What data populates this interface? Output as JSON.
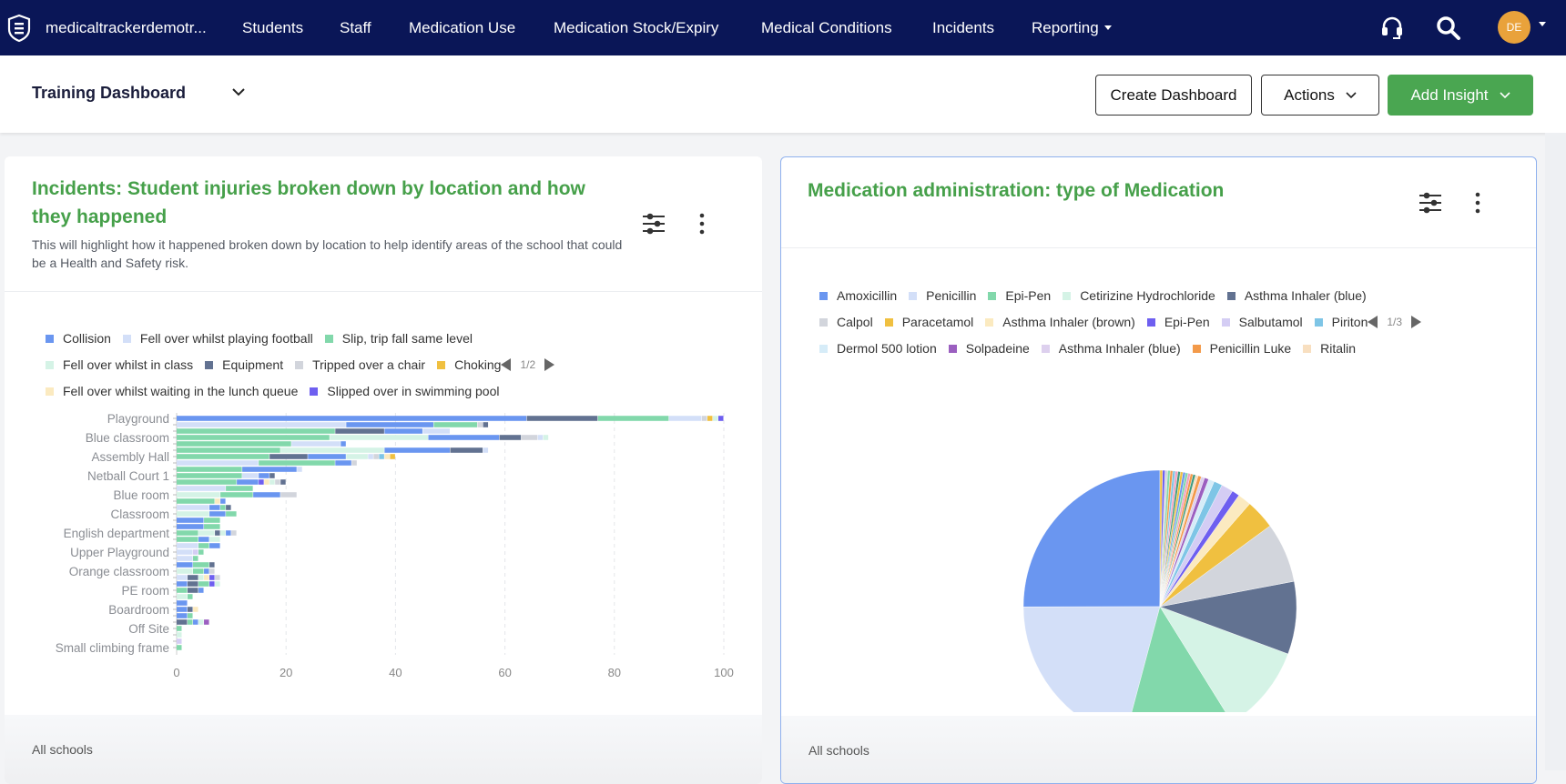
{
  "nav": {
    "brand": "medicaltrackerdemotr...",
    "items": [
      "Students",
      "Staff",
      "Medication Use",
      "Medication Stock/Expiry",
      "Medical Conditions",
      "Incidents",
      "Reporting"
    ],
    "avatar_initials": "DE",
    "bg_color": "#0a1657"
  },
  "header": {
    "dashboard_title": "Training Dashboard",
    "create_dashboard": "Create Dashboard",
    "actions": "Actions",
    "add_insight": "Add Insight",
    "accent_color": "#4aa651"
  },
  "cards": [
    {
      "title": "Incidents: Student injuries broken down by location and how they happened",
      "description": "This will highlight how it happened broken down by location to help identify areas of the school that could be a Health and Safety risk.",
      "footer": "All schools",
      "legend_page": "1/2"
    },
    {
      "title": "Medication administration: type of Medication",
      "footer": "All schools",
      "legend_page": "1/3"
    }
  ],
  "chart_data": [
    {
      "type": "bar",
      "orientation": "horizontal",
      "stacked": true,
      "xlim": [
        0,
        100
      ],
      "x_ticks": [
        "0",
        "20",
        "40",
        "60",
        "80",
        "100"
      ],
      "grid": "vertical dashed",
      "legend_placement": "top",
      "series": [
        {
          "name": "Collision",
          "color": "#6a96f0"
        },
        {
          "name": "Fell over whilst playing football",
          "color": "#d3dff8"
        },
        {
          "name": "Slip, trip fall same level",
          "color": "#82d8ab"
        },
        {
          "name": "Fell over whilst in class",
          "color": "#d5f3e6"
        },
        {
          "name": "Equipment",
          "color": "#627291"
        },
        {
          "name": "Tripped over a chair",
          "color": "#d2d5dc"
        },
        {
          "name": "Choking",
          "color": "#f0c040"
        },
        {
          "name": "Fell over whilst waiting in the lunch queue",
          "color": "#fbeac0"
        },
        {
          "name": "Slipped over in swimming pool",
          "color": "#6e5ff0"
        },
        {
          "color": "#7ec5e6"
        },
        {
          "color": "#d4cdf4"
        },
        {
          "color": "#9b5fc0"
        }
      ],
      "rows": [
        {
          "label": "Playground",
          "segments": [
            [
              0,
              64
            ],
            [
              4,
              13
            ],
            [
              2,
              13
            ],
            [
              1,
              6
            ],
            [
              5,
              1
            ],
            [
              6,
              1
            ],
            [
              3,
              1
            ],
            [
              8,
              1
            ]
          ]
        },
        {
          "label": "",
          "segments": [
            [
              1,
              31
            ],
            [
              0,
              16
            ],
            [
              2,
              8
            ],
            [
              5,
              1
            ],
            [
              4,
              1
            ]
          ]
        },
        {
          "label": "",
          "segments": [
            [
              2,
              29
            ],
            [
              4,
              9
            ],
            [
              0,
              7
            ],
            [
              1,
              5
            ]
          ]
        },
        {
          "label": "Blue classroom",
          "segments": [
            [
              2,
              28
            ],
            [
              3,
              18
            ],
            [
              0,
              13
            ],
            [
              4,
              4
            ],
            [
              5,
              3
            ],
            [
              1,
              1
            ],
            [
              3,
              1
            ]
          ]
        },
        {
          "label": "",
          "segments": [
            [
              2,
              21
            ],
            [
              1,
              9
            ],
            [
              0,
              1
            ]
          ]
        },
        {
          "label": "",
          "segments": [
            [
              2,
              19
            ],
            [
              3,
              19
            ],
            [
              0,
              12
            ],
            [
              4,
              6
            ],
            [
              1,
              1
            ]
          ]
        },
        {
          "label": "Assembly Hall",
          "segments": [
            [
              2,
              17
            ],
            [
              4,
              7
            ],
            [
              0,
              7
            ],
            [
              3,
              4
            ],
            [
              1,
              1
            ],
            [
              5,
              1
            ],
            [
              9,
              1
            ],
            [
              7,
              1
            ],
            [
              6,
              1
            ]
          ]
        },
        {
          "label": "",
          "segments": [
            [
              1,
              15
            ],
            [
              2,
              14
            ],
            [
              0,
              3
            ],
            [
              5,
              1
            ]
          ]
        },
        {
          "label": "",
          "segments": [
            [
              2,
              12
            ],
            [
              0,
              10
            ],
            [
              1,
              1
            ]
          ]
        },
        {
          "label": "Netball Court 1",
          "segments": [
            [
              2,
              12
            ],
            [
              1,
              3
            ],
            [
              0,
              2
            ],
            [
              4,
              1
            ]
          ]
        },
        {
          "label": "",
          "segments": [
            [
              2,
              11
            ],
            [
              0,
              4
            ],
            [
              8,
              1
            ],
            [
              7,
              1
            ],
            [
              3,
              1
            ],
            [
              5,
              1
            ],
            [
              4,
              1
            ]
          ]
        },
        {
          "label": "",
          "segments": [
            [
              1,
              9
            ],
            [
              2,
              5
            ]
          ]
        },
        {
          "label": "Blue room",
          "segments": [
            [
              3,
              8
            ],
            [
              2,
              6
            ],
            [
              0,
              5
            ],
            [
              5,
              3
            ]
          ]
        },
        {
          "label": "",
          "segments": [
            [
              2,
              7
            ],
            [
              7,
              1
            ],
            [
              0,
              1
            ]
          ]
        },
        {
          "label": "",
          "segments": [
            [
              1,
              6
            ],
            [
              0,
              2
            ],
            [
              2,
              1
            ],
            [
              4,
              1
            ]
          ]
        },
        {
          "label": "Classroom",
          "segments": [
            [
              3,
              6
            ],
            [
              0,
              3
            ],
            [
              2,
              2
            ]
          ]
        },
        {
          "label": "",
          "segments": [
            [
              0,
              5
            ],
            [
              2,
              3
            ]
          ]
        },
        {
          "label": "",
          "segments": [
            [
              0,
              5
            ],
            [
              2,
              3
            ]
          ]
        },
        {
          "label": "English department",
          "segments": [
            [
              2,
              4
            ],
            [
              3,
              3
            ],
            [
              4,
              1
            ],
            [
              3,
              1
            ],
            [
              0,
              1
            ],
            [
              5,
              1
            ]
          ]
        },
        {
          "label": "",
          "segments": [
            [
              2,
              4
            ],
            [
              0,
              2
            ],
            [
              3,
              2
            ]
          ]
        },
        {
          "label": "",
          "segments": [
            [
              1,
              4
            ],
            [
              2,
              2
            ],
            [
              0,
              2
            ]
          ]
        },
        {
          "label": "Upper Playground",
          "segments": [
            [
              1,
              3
            ],
            [
              10,
              1
            ],
            [
              2,
              1
            ]
          ]
        },
        {
          "label": "",
          "segments": [
            [
              1,
              3
            ],
            [
              2,
              1
            ]
          ]
        },
        {
          "label": "",
          "segments": [
            [
              0,
              3
            ],
            [
              2,
              3
            ],
            [
              4,
              1
            ]
          ]
        },
        {
          "label": "Orange classroom",
          "segments": [
            [
              3,
              3
            ],
            [
              2,
              2
            ],
            [
              0,
              1
            ],
            [
              5,
              1
            ]
          ]
        },
        {
          "label": "",
          "segments": [
            [
              1,
              2
            ],
            [
              4,
              2
            ],
            [
              3,
              1
            ],
            [
              7,
              1
            ],
            [
              8,
              1
            ],
            [
              5,
              1
            ]
          ]
        },
        {
          "label": "",
          "segments": [
            [
              0,
              2
            ],
            [
              4,
              2
            ],
            [
              2,
              2
            ],
            [
              8,
              1
            ],
            [
              3,
              1
            ]
          ]
        },
        {
          "label": "PE room",
          "segments": [
            [
              2,
              2
            ],
            [
              4,
              2
            ],
            [
              0,
              1
            ]
          ]
        },
        {
          "label": "",
          "segments": [
            [
              3,
              2
            ],
            [
              2,
              1
            ]
          ]
        },
        {
          "label": "",
          "segments": [
            [
              0,
              2
            ]
          ]
        },
        {
          "label": "Boardroom",
          "segments": [
            [
              0,
              2
            ],
            [
              4,
              1
            ],
            [
              7,
              1
            ]
          ]
        },
        {
          "label": "",
          "segments": [
            [
              0,
              2
            ],
            [
              2,
              1
            ]
          ]
        },
        {
          "label": "",
          "segments": [
            [
              4,
              2
            ],
            [
              2,
              1
            ],
            [
              0,
              1
            ],
            [
              3,
              1
            ],
            [
              11,
              1
            ]
          ]
        },
        {
          "label": "Off Site",
          "segments": [
            [
              2,
              1
            ]
          ]
        },
        {
          "label": "",
          "segments": [
            [
              3,
              1
            ]
          ]
        },
        {
          "label": "",
          "segments": [
            [
              10,
              1
            ]
          ]
        },
        {
          "label": "Small climbing frame",
          "segments": [
            [
              2,
              1
            ]
          ]
        }
      ]
    },
    {
      "type": "pie",
      "unit": "percent",
      "legend_placement": "top",
      "slices": [
        {
          "name": "Amoxicillin",
          "value": 25.0,
          "color": "#6a96f0"
        },
        {
          "name": "Penicillin",
          "value": 20.8,
          "color": "#d3dff8"
        },
        {
          "name": "Epi-Pen",
          "value": 13.0,
          "color": "#82d8ab"
        },
        {
          "name": "Cetirizine Hydrochloride",
          "value": 10.5,
          "color": "#d5f3e6"
        },
        {
          "name": "Asthma Inhaler (blue)",
          "value": 8.6,
          "color": "#627291"
        },
        {
          "name": "Calpol",
          "value": 7.1,
          "color": "#d2d5dc"
        },
        {
          "name": "Paracetamol",
          "value": 3.5,
          "color": "#f0c040"
        },
        {
          "name": "Asthma Inhaler (brown)",
          "value": 1.6,
          "color": "#fbeac0"
        },
        {
          "name": "Epi-Pen",
          "value": 0.9,
          "color": "#6e5ff0"
        },
        {
          "name": "Salbutamol",
          "value": 1.4,
          "color": "#d4cdf4"
        },
        {
          "name": "Piriton",
          "value": 1.0,
          "color": "#7ec5e6"
        },
        {
          "name": "Dermol 500 lotion",
          "value": 0.7,
          "color": "#d6ecf8"
        },
        {
          "name": "Solpadeine",
          "value": 0.5,
          "color": "#9b5fc0"
        },
        {
          "name": "Asthma Inhaler (blue)",
          "value": 0.4,
          "color": "#ddd0ee"
        },
        {
          "name": "Penicillin  Luke",
          "value": 0.4,
          "color": "#f39a4a"
        },
        {
          "name": "Ritalin",
          "value": 0.3,
          "color": "#f8dfc0"
        },
        {
          "value": 0.3,
          "color": "#3f9a7f"
        },
        {
          "value": 0.3,
          "color": "#f39a4a"
        },
        {
          "value": 0.3,
          "color": "#f3a0c0"
        },
        {
          "value": 0.3,
          "color": "#82d8ab"
        },
        {
          "value": 0.3,
          "color": "#6a96f0"
        },
        {
          "value": 0.3,
          "color": "#f0c040"
        },
        {
          "value": 0.3,
          "color": "#3f9a7f"
        },
        {
          "value": 0.3,
          "color": "#f3a0c0"
        },
        {
          "value": 0.3,
          "color": "#7ec5e6"
        },
        {
          "value": 0.3,
          "color": "#f39a4a"
        },
        {
          "value": 0.3,
          "color": "#82d8ab"
        },
        {
          "value": 0.3,
          "color": "#d2d5dc"
        },
        {
          "value": 0.3,
          "color": "#6e5ff0"
        },
        {
          "value": 0.3,
          "color": "#f0c040"
        }
      ]
    }
  ]
}
